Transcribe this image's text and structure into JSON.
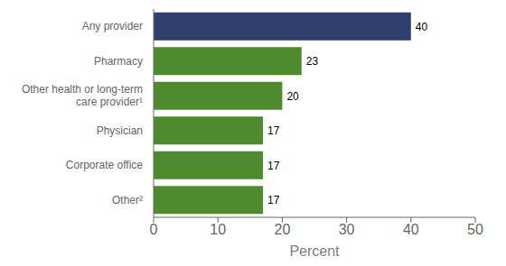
{
  "chart_data": {
    "type": "bar",
    "orientation": "horizontal",
    "categories": [
      "Other²",
      "Corporate office",
      "Physician",
      "Other health or long-term\ncare provider¹",
      "Pharmacy",
      "Any provider"
    ],
    "values": [
      17,
      17,
      17,
      20,
      23,
      40
    ],
    "colors": [
      "#4e8b2e",
      "#4e8b2e",
      "#4e8b2e",
      "#4e8b2e",
      "#4e8b2e",
      "#2e3f6e"
    ],
    "xlabel": "Percent",
    "xlim": [
      0,
      50
    ],
    "xticks": [
      0,
      10,
      20,
      30,
      40,
      50
    ],
    "data_labels": true,
    "grid": false
  }
}
